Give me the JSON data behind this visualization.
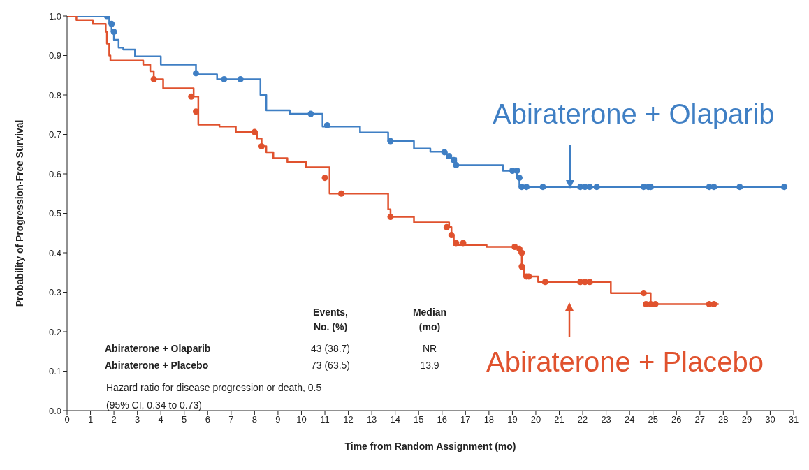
{
  "chart_data": {
    "type": "step",
    "xlabel": "Time from Random Assignment (mo)",
    "ylabel": "Probability of Progression-Free Survival",
    "xlim": [
      0,
      31
    ],
    "xticks": [
      0,
      1,
      2,
      3,
      4,
      5,
      6,
      7,
      8,
      9,
      10,
      11,
      12,
      13,
      14,
      15,
      16,
      17,
      18,
      19,
      20,
      21,
      22,
      23,
      24,
      25,
      26,
      27,
      28,
      29,
      30,
      31
    ],
    "ylim": [
      0,
      1
    ],
    "yticks": [
      {
        "value": 0,
        "label": "0.0"
      },
      0.1,
      0.2,
      0.3,
      0.4,
      0.5,
      0.6,
      0.7,
      0.8,
      0.9,
      {
        "value": 1,
        "label": "1.0"
      }
    ],
    "grid": false,
    "legend": "right",
    "series": [
      {
        "name": "Abiraterone + Olaparib",
        "color": "#3f7fc4",
        "x": [
          0,
          1.8,
          1.9,
          2.0,
          2.2,
          2.4,
          2.9,
          4.0,
          5.5,
          6.4,
          8.25,
          8.5,
          9.5,
          10.9,
          12.5,
          13.7,
          14.8,
          15.5,
          16.2,
          16.6,
          18.6,
          19.2,
          19.3,
          30.6
        ],
        "values": [
          1.0,
          0.98,
          0.96,
          0.94,
          0.92,
          0.915,
          0.898,
          0.877,
          0.852,
          0.84,
          0.8,
          0.761,
          0.752,
          0.72,
          0.705,
          0.683,
          0.664,
          0.656,
          0.64,
          0.622,
          0.608,
          0.59,
          0.567,
          0.567
        ]
      },
      {
        "name": "Abiraterone + Placebo",
        "color": "#e0522e",
        "x": [
          0,
          0.4,
          1.1,
          1.65,
          1.7,
          1.8,
          1.85,
          3.25,
          3.55,
          3.7,
          4.1,
          5.4,
          5.6,
          6.5,
          7.2,
          8.1,
          8.3,
          8.5,
          8.8,
          9.4,
          10.2,
          11.2,
          13.7,
          13.8,
          14.8,
          16.3,
          16.4,
          16.5,
          17.9,
          19.3,
          19.4,
          19.5,
          20.1,
          23.2,
          24.9,
          27.8
        ],
        "values": [
          1.0,
          0.99,
          0.98,
          0.96,
          0.93,
          0.9,
          0.887,
          0.877,
          0.86,
          0.84,
          0.817,
          0.796,
          0.725,
          0.72,
          0.706,
          0.69,
          0.67,
          0.655,
          0.64,
          0.63,
          0.617,
          0.55,
          0.51,
          0.491,
          0.477,
          0.465,
          0.445,
          0.42,
          0.415,
          0.4,
          0.365,
          0.34,
          0.326,
          0.298,
          0.27,
          0.27
        ]
      },
      {
        "color": "#3f7fc4",
        "type": "scatter",
        "marker": "circle",
        "x": [
          1.7,
          1.9,
          2.0,
          5.5,
          6.7,
          7.4,
          10.4,
          11.1,
          13.8,
          16.1,
          16.3,
          16.5,
          16.6,
          19.0,
          19.2,
          19.3,
          19.4,
          19.6,
          20.3,
          21.9,
          22.1,
          22.3,
          22.6,
          24.6,
          24.8,
          24.9,
          27.4,
          27.6,
          28.7,
          30.6
        ],
        "values": [
          1.0,
          0.98,
          0.96,
          0.855,
          0.84,
          0.84,
          0.752,
          0.723,
          0.683,
          0.655,
          0.645,
          0.635,
          0.622,
          0.608,
          0.608,
          0.59,
          0.567,
          0.567,
          0.567,
          0.567,
          0.567,
          0.567,
          0.567,
          0.567,
          0.567,
          0.567,
          0.567,
          0.567,
          0.567,
          0.567
        ]
      },
      {
        "color": "#e0522e",
        "type": "scatter",
        "marker": "circle",
        "x": [
          3.7,
          5.3,
          5.5,
          8.0,
          8.3,
          11.0,
          11.7,
          13.8,
          16.2,
          16.4,
          16.6,
          16.9,
          19.1,
          19.3,
          19.4,
          19.4,
          19.6,
          19.7,
          20.4,
          21.9,
          22.1,
          22.3,
          24.6,
          24.7,
          24.9,
          25.1,
          27.4,
          27.6
        ],
        "values": [
          0.84,
          0.796,
          0.758,
          0.706,
          0.67,
          0.59,
          0.55,
          0.491,
          0.465,
          0.445,
          0.425,
          0.425,
          0.415,
          0.41,
          0.4,
          0.365,
          0.34,
          0.34,
          0.326,
          0.326,
          0.326,
          0.326,
          0.298,
          0.27,
          0.27,
          0.27,
          0.27,
          0.27
        ]
      }
    ],
    "annotations": [
      "Events,",
      "No. (%)",
      "Median",
      "(mo)",
      "Abiraterone + Olaparib",
      "43 (38.7)",
      "NR",
      "Abiraterone + Placebo",
      "73 (63.5)",
      "13.9",
      "Hazard ratio for disease progression or death, 0.5",
      "(95% CI, 0.34 to 0.73)"
    ]
  }
}
